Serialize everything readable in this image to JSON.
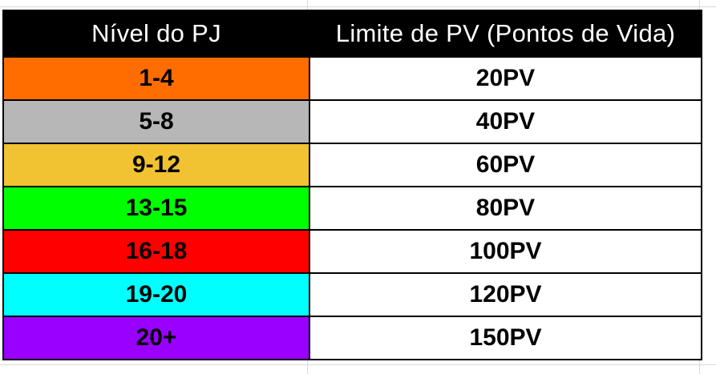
{
  "table": {
    "headers": {
      "level": "Nível do PJ",
      "hp": "Limite de PV (Pontos de Vida)"
    },
    "header_colors": {
      "background": "#000000",
      "text": "#ffffff"
    },
    "rows": [
      {
        "level": "1-4",
        "hp": "20PV",
        "color": "#ff6d01"
      },
      {
        "level": "5-8",
        "hp": "40PV",
        "color": "#b7b7b7"
      },
      {
        "level": "9-12",
        "hp": "60PV",
        "color": "#f1c232"
      },
      {
        "level": "13-15",
        "hp": "80PV",
        "color": "#00ff00"
      },
      {
        "level": "16-18",
        "hp": "100PV",
        "color": "#ff0000"
      },
      {
        "level": "19-20",
        "hp": "120PV",
        "color": "#00ffff"
      },
      {
        "level": "20+",
        "hp": "150PV",
        "color": "#9900ff"
      }
    ]
  }
}
